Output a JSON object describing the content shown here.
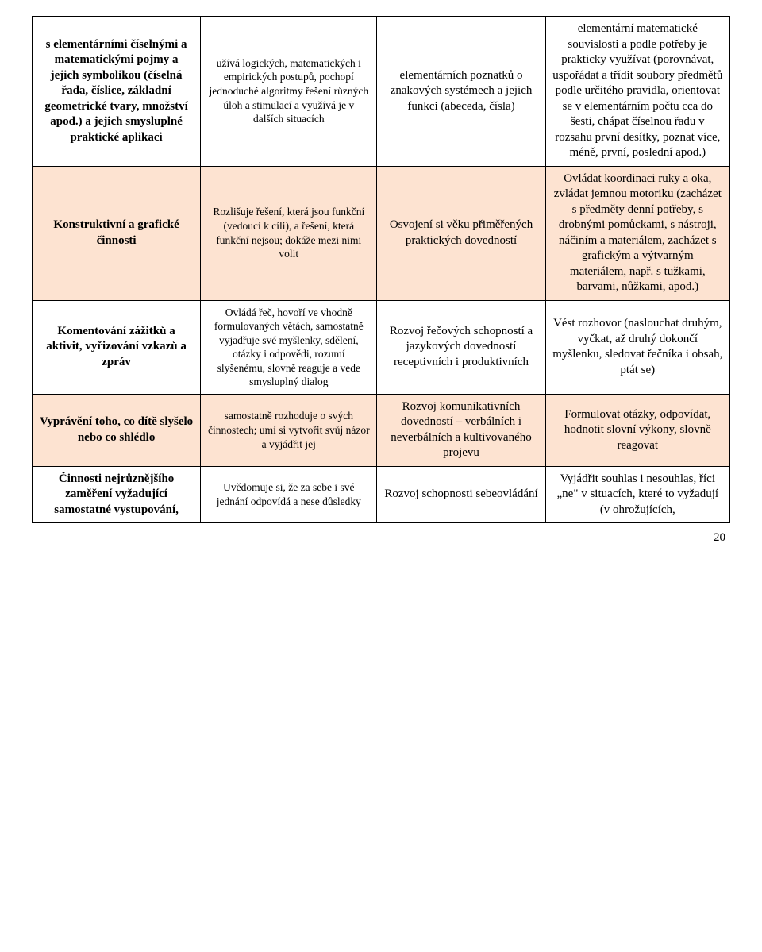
{
  "colors": {
    "peach": "#fde3d1",
    "white": "#ffffff",
    "text": "#000000",
    "border": "#000000"
  },
  "page_number": "20",
  "rows": [
    {
      "c1": "s elementárními číselnými a matematickými pojmy a jejich symbolikou (číselná řada, číslice, základní geometrické tvary, množství apod.) a jejich smysluplné praktické aplikaci",
      "c2": "užívá logických, matematických i empirických postupů, pochopí jednoduché algoritmy řešení různých úloh a stimulací a využívá je v dalších situacích",
      "c3": "elementárních poznatků o znakových systémech a jejich funkci (abeceda, čísla)",
      "c4": "elementární matematické souvislosti a podle potřeby je prakticky využívat (porovnávat, uspořádat a třídit soubory předmětů podle určitého pravidla, orientovat se v elementárním počtu cca do šesti, chápat číselnou řadu v rozsahu první desítky, poznat více, méně, první, poslední apod.)"
    },
    {
      "c1": "Konstruktivní a grafické činnosti",
      "c2": "Rozlišuje řešení, která jsou funkční (vedoucí k cíli), a řešení, která funkční nejsou; dokáže mezi nimi volit",
      "c3": "Osvojení si věku přiměřených praktických dovedností",
      "c4": "Ovládat koordinaci ruky a oka, zvládat jemnou motoriku (zacházet s předměty denní potřeby, s drobnými pomůckami, s nástroji, náčiním a materiálem, zacházet s grafickým a výtvarným materiálem, např. s tužkami, barvami, nůžkami, apod.)"
    },
    {
      "c1": "Komentování zážitků a aktivit, vyřizování vzkazů a zpráv",
      "c2": "Ovládá řeč, hovoří ve vhodně formulovaných větách, samostatně vyjadřuje své myšlenky, sdělení, otázky i odpovědi, rozumí slyšenému, slovně reaguje a vede smysluplný dialog",
      "c3": "Rozvoj řečových schopností a jazykových dovedností receptivních i produktivních",
      "c4": "Vést rozhovor (naslouchat druhým, vyčkat, až druhý dokončí myšlenku, sledovat řečníka i obsah, ptát se)"
    },
    {
      "c1": "Vyprávění toho, co dítě slyšelo nebo co shlédlo",
      "c2": "samostatně rozhoduje o svých činnostech; umí si vytvořit svůj názor a vyjádřit jej",
      "c3": "Rozvoj komunikativních dovedností – verbálních i neverbálních a kultivovaného projevu",
      "c4": "Formulovat otázky, odpovídat, hodnotit slovní výkony, slovně reagovat"
    },
    {
      "c1": "Činnosti nejrůznějšího zaměření vyžadující samostatné vystupování,",
      "c2": "Uvědomuje si, že za sebe i své jednání odpovídá a nese důsledky",
      "c3": "Rozvoj schopnosti sebeovládání",
      "c4": "Vyjádřit souhlas i nesouhlas, říci „ne\" v situacích, které to vyžadují (v ohrožujících,"
    }
  ]
}
